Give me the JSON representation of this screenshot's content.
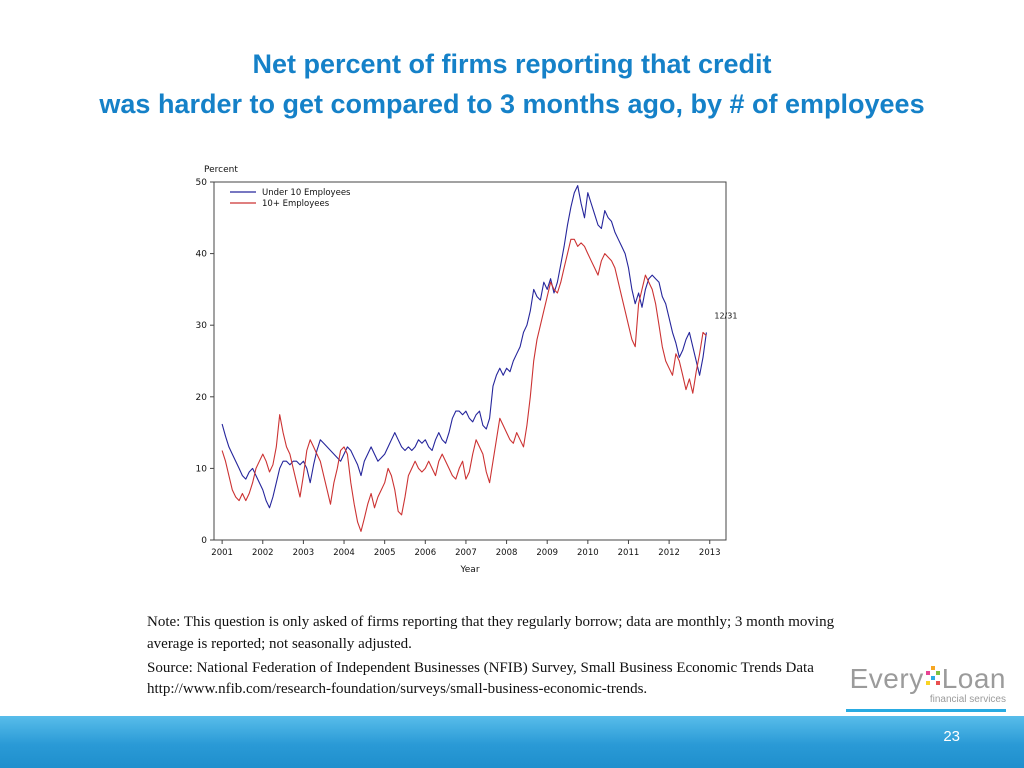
{
  "slide": {
    "title_line1": "Net percent of firms reporting that credit",
    "title_line2": "was harder to get compared to 3 months ago, by # of employees",
    "title_color": "#1581c8",
    "footer_color": "#2a9ad6",
    "page_number": "23",
    "note": "Note: This question is only asked of firms reporting that they regularly borrow; data are monthly; 3 month moving average is reported; not seasonally adjusted.",
    "source": "Source: National Federation of Independent Businesses (NFIB) Survey, Small Business Economic Trends Data http://www.nfib.com/research-foundation/surveys/small-business-economic-trends."
  },
  "logo": {
    "name_part1": "Every",
    "name_part2": "Loan",
    "tagline": "financial services",
    "accent_color": "#29abe2"
  },
  "chart_data": {
    "type": "line",
    "title": "",
    "ylabel": "Percent",
    "xlabel": "Year",
    "xlim": [
      2000.8,
      2013.4
    ],
    "ylim": [
      0,
      50
    ],
    "yticks": [
      0,
      10,
      20,
      30,
      40,
      50
    ],
    "xticks": [
      2001,
      2002,
      2003,
      2004,
      2005,
      2006,
      2007,
      2008,
      2009,
      2010,
      2011,
      2012,
      2013
    ],
    "x_start": 2001.0,
    "x_step": "monthly",
    "grid": false,
    "legend_position": "top-left",
    "annotation": {
      "label": "12/31"
    },
    "series": [
      {
        "name": "Under 10 Employees",
        "color": "#26269c",
        "values": [
          16.2,
          14.5,
          13,
          12,
          11,
          10,
          9,
          8.5,
          9.5,
          10,
          9,
          8,
          7,
          5.5,
          4.5,
          6,
          8,
          10,
          11,
          11,
          10.5,
          11,
          11,
          10.5,
          11,
          10,
          8,
          10.5,
          12.5,
          14,
          13.5,
          13,
          12.5,
          12,
          11.5,
          11,
          12,
          13,
          12.5,
          11.5,
          10.5,
          9,
          11,
          12,
          13,
          12,
          11,
          11.5,
          12,
          13,
          14,
          15,
          14,
          13,
          12.5,
          13,
          12.5,
          13,
          14,
          13.5,
          14,
          13,
          12.5,
          14,
          15,
          14,
          13.5,
          15,
          17,
          18,
          18,
          17.5,
          18,
          17,
          16.5,
          17.5,
          18,
          16,
          15.5,
          17,
          21.5,
          23,
          24,
          23,
          24,
          23.5,
          25,
          26,
          27,
          29,
          30,
          32,
          35,
          34,
          33.5,
          36,
          35,
          36.5,
          34.5,
          36,
          38.5,
          41,
          44,
          46.5,
          48.5,
          49.5,
          47,
          45,
          48.5,
          47,
          45.5,
          44,
          43.5,
          46,
          45,
          44.5,
          43,
          42,
          41,
          40,
          38,
          35,
          33,
          34.5,
          32.5,
          35,
          36.5,
          37,
          36.5,
          36,
          34,
          33,
          31,
          29,
          27.5,
          25.5,
          26.5,
          28,
          29,
          27,
          25,
          23,
          25.5,
          29
        ]
      },
      {
        "name": "10+ Employees",
        "color": "#cc3333",
        "values": [
          12.5,
          11,
          9,
          7,
          6,
          5.5,
          6.5,
          5.5,
          6.5,
          8,
          10,
          11,
          12,
          11,
          9.5,
          10.5,
          13,
          17.5,
          15,
          13,
          12,
          10,
          8,
          6,
          9,
          12.5,
          14,
          13,
          12,
          11,
          9,
          7,
          5,
          8,
          10,
          12.5,
          13,
          12,
          8,
          5,
          2.5,
          1.2,
          3,
          5,
          6.5,
          4.5,
          6,
          7,
          8,
          10,
          9,
          7,
          4,
          3.5,
          6,
          9,
          10,
          11,
          10,
          9.5,
          10,
          11,
          10,
          9,
          11,
          12,
          11,
          10,
          9,
          8.5,
          10,
          11,
          8.5,
          9.5,
          12,
          14,
          13,
          12,
          9.5,
          8,
          11,
          14,
          17,
          16,
          15,
          14,
          13.5,
          15,
          14,
          13,
          16,
          20,
          25,
          28,
          30,
          32,
          34,
          36,
          35,
          34.5,
          36,
          38,
          40,
          42,
          42,
          41,
          41.5,
          41,
          40,
          39,
          38,
          37,
          39,
          40,
          39.5,
          39,
          38,
          36,
          34,
          32,
          30,
          28,
          27,
          33,
          35,
          37,
          36,
          35,
          33,
          30,
          27,
          25,
          24,
          23,
          26,
          25,
          23,
          21,
          22.5,
          20.5,
          23.5,
          26,
          29,
          28.5
        ]
      }
    ]
  }
}
